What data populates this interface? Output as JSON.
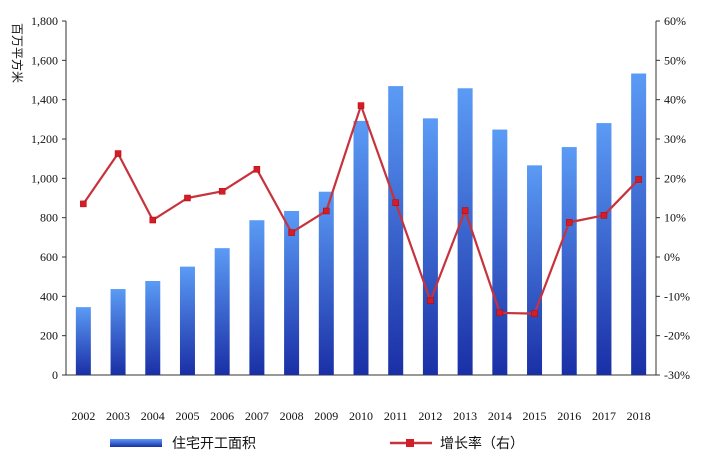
{
  "chart_data": {
    "type": "bar",
    "categories": [
      "2002",
      "2003",
      "2004",
      "2005",
      "2006",
      "2007",
      "2008",
      "2009",
      "2010",
      "2011",
      "2012",
      "2013",
      "2014",
      "2015",
      "2016",
      "2017",
      "2018"
    ],
    "series": [
      {
        "name": "住宅开工面积",
        "type": "bar",
        "axis": "left",
        "values": [
          345,
          437,
          478,
          551,
          645,
          787,
          834,
          932,
          1292,
          1469,
          1305,
          1458,
          1248,
          1066,
          1159,
          1281,
          1533
        ]
      },
      {
        "name": "增长率（右）",
        "type": "line",
        "axis": "right",
        "values": [
          13.5,
          26.3,
          9.4,
          15.0,
          16.7,
          22.3,
          6.2,
          11.7,
          38.5,
          13.8,
          -11.1,
          11.8,
          -14.2,
          -14.4,
          8.8,
          10.6,
          19.7
        ]
      }
    ],
    "ylabel": "百万平方米",
    "ylim": [
      0,
      1800
    ],
    "yticks": [
      "0",
      "200",
      "400",
      "600",
      "800",
      "1,000",
      "1,200",
      "1,400",
      "1,600",
      "1,800"
    ],
    "y2lim": [
      -30,
      60
    ],
    "y2ticks": [
      "-30%",
      "-20%",
      "-10%",
      "0%",
      "10%",
      "20%",
      "30%",
      "40%",
      "50%",
      "60%"
    ],
    "legend_position": "bottom",
    "colors": {
      "bar_top": "#5b9bf5",
      "bar_bottom": "#1a2fa6",
      "line": "#c8323c",
      "marker": "#d21e28"
    }
  }
}
